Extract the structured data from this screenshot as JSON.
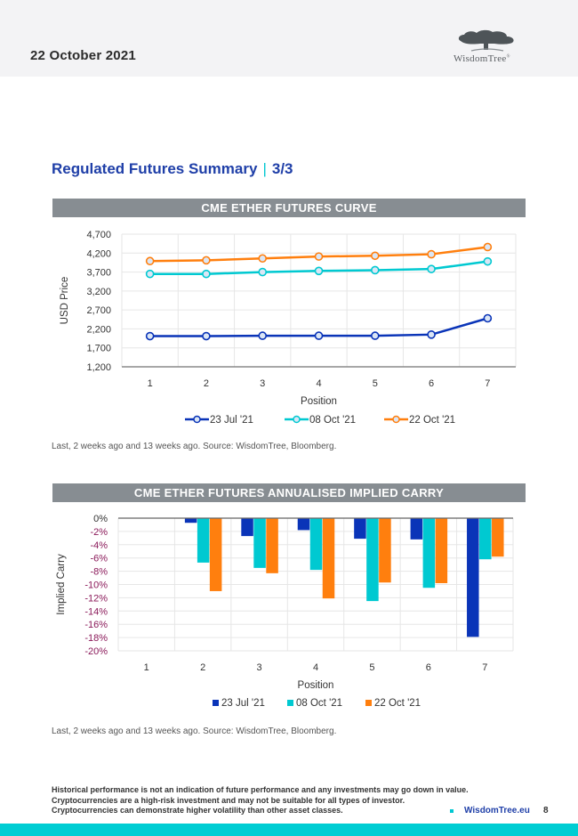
{
  "header": {
    "date": "22 October 2021",
    "logo_text": "WisdomTree",
    "logo_mark": "®"
  },
  "page_title": {
    "main": "Regulated Futures Summary",
    "separator": "|",
    "page": "3/3"
  },
  "colors": {
    "series_jul": "#0a34b8",
    "series_oct08": "#00c9d1",
    "series_oct22": "#ff7f0e",
    "banner": "#878d92",
    "title_blue": "#1f3fa8",
    "accent_teal": "#00cdd3",
    "neg_tick": "#8b1a5a"
  },
  "chart_data": [
    {
      "type": "line",
      "title": "CME ETHER FUTURES CURVE",
      "xlabel": "Position",
      "ylabel": "USD Price",
      "x": [
        1,
        2,
        3,
        4,
        5,
        6,
        7
      ],
      "ylim": [
        1200,
        4700
      ],
      "yticks": [
        "4,700",
        "4,200",
        "3,700",
        "3,200",
        "2,700",
        "2,200",
        "1,700",
        "1,200"
      ],
      "ytick_values": [
        4700,
        4200,
        3700,
        3200,
        2700,
        2200,
        1700,
        1200
      ],
      "grid": true,
      "legend_position": "bottom",
      "series": [
        {
          "name": "23 Jul '21",
          "values": [
            2010,
            2010,
            2020,
            2020,
            2020,
            2050,
            2480
          ]
        },
        {
          "name": "08 Oct '21",
          "values": [
            3650,
            3650,
            3700,
            3730,
            3750,
            3780,
            3980
          ]
        },
        {
          "name": "22 Oct '21",
          "values": [
            3990,
            4010,
            4060,
            4110,
            4130,
            4170,
            4360
          ]
        }
      ],
      "source": "Last, 2 weeks ago and 13 weeks ago. Source: WisdomTree, Bloomberg."
    },
    {
      "type": "bar",
      "title": "CME ETHER FUTURES ANNUALISED IMPLIED CARRY",
      "xlabel": "Position",
      "ylabel": "Implied Carry",
      "categories": [
        "1",
        "2",
        "3",
        "4",
        "5",
        "6",
        "7"
      ],
      "ylim": [
        -20,
        0
      ],
      "yticks": [
        "0%",
        "-2%",
        "-4%",
        "-6%",
        "-8%",
        "-10%",
        "-12%",
        "-14%",
        "-16%",
        "-18%",
        "-20%"
      ],
      "ytick_values": [
        0,
        -2,
        -4,
        -6,
        -8,
        -10,
        -12,
        -14,
        -16,
        -18,
        -20
      ],
      "grid": true,
      "legend_position": "bottom",
      "series": [
        {
          "name": "23 Jul '21",
          "values": [
            null,
            -0.7,
            -2.7,
            -1.8,
            -3.1,
            -3.2,
            -17.9
          ]
        },
        {
          "name": "08 Oct '21",
          "values": [
            null,
            -6.7,
            -7.5,
            -7.8,
            -12.5,
            -10.5,
            -6.2
          ]
        },
        {
          "name": "22 Oct '21",
          "values": [
            null,
            -11.0,
            -8.3,
            -12.1,
            -9.7,
            -9.8,
            -5.8
          ]
        }
      ],
      "source": "Last, 2 weeks ago and 13 weeks ago. Source: WisdomTree, Bloomberg."
    }
  ],
  "footer": {
    "disclaimer": [
      "Historical performance is not an indication of future performance and any investments may go down in value.",
      "Cryptocurrencies are a high-risk investment and may not be suitable for all types of investor.",
      "Cryptocurrencies can demonstrate higher volatility than other asset classes."
    ],
    "link": "WisdomTree.eu",
    "page_number": "8"
  }
}
